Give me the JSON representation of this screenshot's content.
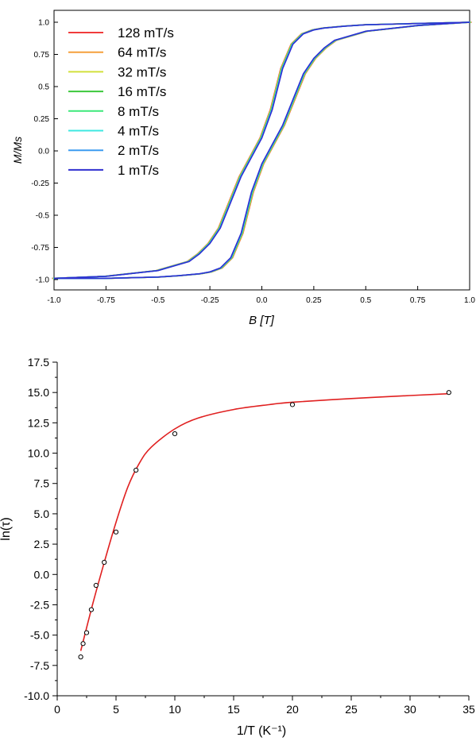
{
  "chart_data": [
    {
      "type": "line",
      "title": "",
      "xlabel": "B [T]",
      "ylabel": "M/Ms",
      "xlim": [
        -1.0,
        1.0
      ],
      "ylim": [
        -1.05,
        1.05
      ],
      "x_ticks": [
        "-1.0",
        "-0.75",
        "-0.5",
        "-0.25",
        "0.0",
        "0.25",
        "0.5",
        "0.75",
        "1.0"
      ],
      "y_ticks": [
        "1.0",
        "0.75",
        "0.5",
        "0.25",
        "0.0",
        "-0.25",
        "-0.5",
        "-0.75",
        "-1.0"
      ],
      "legend_position": "top-left",
      "series": [
        {
          "name": "128 mT/s",
          "color": "#f03c3c"
        },
        {
          "name": "64 mT/s",
          "color": "#f5a03c"
        },
        {
          "name": "32 mT/s",
          "color": "#d2e03c"
        },
        {
          "name": "16 mT/s",
          "color": "#3cc83c"
        },
        {
          "name": "8 mT/s",
          "color": "#3ce87a"
        },
        {
          "name": "4 mT/s",
          "color": "#3ce8e0"
        },
        {
          "name": "2 mT/s",
          "color": "#3c9cf0"
        },
        {
          "name": "1 mT/s",
          "color": "#3030d0"
        }
      ],
      "branches": {
        "descending": {
          "x": [
            1.0,
            0.75,
            0.5,
            0.4,
            0.3,
            0.25,
            0.2,
            0.15,
            0.1,
            0.05,
            0.0,
            -0.05,
            -0.1,
            -0.15,
            -0.2,
            -0.25,
            -0.3,
            -0.35,
            -0.5,
            -0.75,
            -1.0
          ],
          "y": [
            1.0,
            0.99,
            0.98,
            0.97,
            0.955,
            0.94,
            0.91,
            0.83,
            0.64,
            0.32,
            0.1,
            -0.05,
            -0.2,
            -0.4,
            -0.6,
            -0.72,
            -0.8,
            -0.86,
            -0.93,
            -0.975,
            -0.99
          ]
        },
        "ascending": {
          "x": [
            -1.0,
            -0.75,
            -0.5,
            -0.4,
            -0.3,
            -0.25,
            -0.2,
            -0.15,
            -0.1,
            -0.05,
            0.0,
            0.05,
            0.1,
            0.15,
            0.2,
            0.25,
            0.3,
            0.35,
            0.5,
            0.75,
            1.0
          ],
          "y": [
            -0.99,
            -0.99,
            -0.98,
            -0.97,
            -0.955,
            -0.94,
            -0.91,
            -0.83,
            -0.64,
            -0.32,
            -0.1,
            0.05,
            0.2,
            0.4,
            0.6,
            0.72,
            0.8,
            0.86,
            0.93,
            0.975,
            1.0
          ]
        }
      }
    },
    {
      "type": "scatter",
      "title": "",
      "xlabel": "1/T (K⁻¹)",
      "ylabel": "ln(τ)",
      "xlim": [
        0,
        35
      ],
      "ylim": [
        -10.0,
        17.5
      ],
      "x_ticks": [
        "0",
        "5",
        "10",
        "15",
        "20",
        "25",
        "30",
        "35"
      ],
      "y_ticks": [
        "17.5",
        "15.0",
        "12.5",
        "10.0",
        "7.5",
        "5.0",
        "2.5",
        "0.0",
        "-2.5",
        "-5.0",
        "-7.5",
        "-10.0"
      ],
      "points": {
        "x": [
          2.0,
          2.2,
          2.5,
          2.9,
          3.3,
          4.0,
          5.0,
          6.7,
          10.0,
          20.0,
          33.3
        ],
        "y": [
          -6.8,
          -5.7,
          -4.8,
          -2.9,
          -0.9,
          1.0,
          3.5,
          8.6,
          11.6,
          14.0,
          15.0
        ]
      },
      "fit": {
        "color": "#e02020",
        "x": [
          2.0,
          3.0,
          4.0,
          5.0,
          6.0,
          7.0,
          8.0,
          10.0,
          12.0,
          15.0,
          18.0,
          20.0,
          25.0,
          30.0,
          33.3
        ],
        "y": [
          -6.3,
          -2.5,
          1.0,
          4.3,
          7.2,
          9.2,
          10.5,
          12.0,
          12.9,
          13.6,
          14.0,
          14.2,
          14.5,
          14.75,
          14.9
        ]
      }
    }
  ]
}
